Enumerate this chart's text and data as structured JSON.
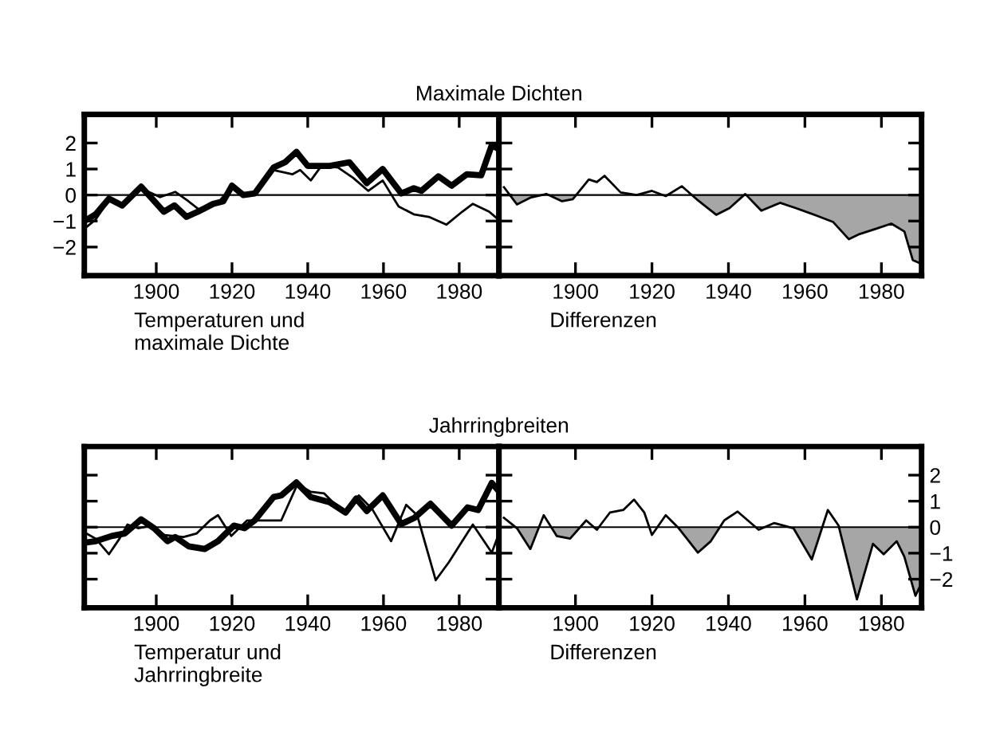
{
  "chart_data": [
    {
      "type": "line",
      "title": "Maximale Dichten",
      "xlabel": "Temperaturen und\nmaximale Dichte",
      "xlim": [
        1881,
        1990.5
      ],
      "xticks": [
        1900,
        1920,
        1940,
        1960,
        1980
      ],
      "ylim": [
        -3.1,
        3.1
      ],
      "yticks": [
        {
          "value": -2,
          "label": "−2"
        },
        {
          "value": -1,
          "label": "−1"
        },
        0,
        1,
        2
      ],
      "grid": false,
      "marker": "none",
      "line_style": "solid",
      "ref_lines": [
        {
          "axis": "y",
          "value": 0,
          "color": "#000000"
        }
      ],
      "series": [
        {
          "color": "#000000",
          "x": [
            1881,
            1884,
            1887.5,
            1891,
            1896,
            1902,
            1904.8,
            1908,
            1911,
            1915,
            1917.7,
            1920,
            1923,
            1926,
            1931,
            1934,
            1937,
            1940,
            1945.8,
            1951,
            1955.6,
            1959.8,
            1964.7,
            1968,
            1970,
            1974.5,
            1978,
            1982,
            1985.8,
            1988.6,
            1990
          ],
          "values": [
            -1.0,
            -0.74,
            -0.14,
            -0.4,
            0.32,
            -0.64,
            -0.4,
            -0.84,
            -0.64,
            -0.34,
            -0.24,
            0.36,
            0,
            0.06,
            1.06,
            1.26,
            1.66,
            1.12,
            1.12,
            1.26,
            0.46,
            1.0,
            0.06,
            0.26,
            0.16,
            0.72,
            0.36,
            0.8,
            0.76,
            1.92,
            1.8
          ]
        },
        {
          "color": "#000000",
          "x": [
            1881,
            1884,
            1887.5,
            1891,
            1896,
            1901,
            1905,
            1908.5,
            1912,
            1916,
            1920,
            1923,
            1926,
            1931,
            1936,
            1938,
            1940.8,
            1943.6,
            1948,
            1952,
            1956,
            1959.8,
            1964,
            1968,
            1972,
            1976.6,
            1980.8,
            1983.6,
            1987.9,
            1990
          ],
          "values": [
            -1.3,
            -0.94,
            -0.2,
            -0.34,
            0.26,
            -0.08,
            0.12,
            -0.24,
            -0.64,
            -0.34,
            0.32,
            0,
            0.06,
            0.96,
            0.8,
            0.96,
            0.56,
            1.12,
            1.06,
            0.66,
            0.16,
            0.56,
            -0.44,
            -0.74,
            -0.84,
            -1.14,
            -0.64,
            -0.34,
            -0.64,
            -0.9
          ]
        }
      ]
    },
    {
      "type": "line",
      "xlabel": "Differenzen",
      "xlim": [
        1880,
        1990.5
      ],
      "xticks": [
        1900,
        1920,
        1940,
        1960,
        1980
      ],
      "ylim": [
        -3.1,
        3.1
      ],
      "yticks": [
        -2,
        -1,
        0,
        1,
        2
      ],
      "tick_labels": "x",
      "grid": false,
      "ref_lines": [
        {
          "axis": "y",
          "value": 0,
          "color": "#000000"
        }
      ],
      "series": [
        {
          "type": "area",
          "color": "#000000",
          "x": [
            1882.8,
            1884.7,
            1888.2,
            1891.2
          ],
          "values": [
            0,
            -0.36,
            -0.1,
            0
          ]
        },
        {
          "type": "area",
          "color": "#000000",
          "x": [
            1893.0,
            1896.5,
            1899.3,
            1900.2
          ],
          "values": [
            0,
            -0.24,
            -0.16,
            0
          ]
        },
        {
          "type": "area",
          "color": "#000000",
          "x": [
            1930.4,
            1932,
            1936.8,
            1940.3,
            1944.1
          ],
          "values": [
            0,
            -0.2,
            -0.76,
            -0.5,
            0
          ]
        },
        {
          "type": "area",
          "color": "#000000",
          "x": [
            1944.7,
            1948.6,
            1953.5,
            1957.6,
            1963.2,
            1967.4,
            1971.5,
            1974.3,
            1978.5,
            1982.6,
            1986,
            1988.2,
            1990.3
          ],
          "values": [
            0,
            -0.6,
            -0.3,
            -0.5,
            -0.8,
            -1.04,
            -1.7,
            -1.5,
            -1.3,
            -1.1,
            -1.4,
            -2.5,
            -2.64
          ]
        },
        {
          "type": "line",
          "color": "#000000",
          "x": [
            1881.3,
            1884.7,
            1888.2,
            1892.4,
            1896.5,
            1899.3,
            1903.5,
            1905.6,
            1907.6,
            1911.8,
            1916,
            1920,
            1923.6,
            1927.8,
            1932,
            1936.8,
            1940.3,
            1944.4,
            1948.6,
            1953.5,
            1957.6,
            1963.2,
            1967.4,
            1971.5,
            1974.3,
            1978.5,
            1982.6,
            1986,
            1988.2,
            1990.3
          ],
          "values": [
            0.3,
            -0.36,
            -0.1,
            0.04,
            -0.24,
            -0.16,
            0.6,
            0.5,
            0.74,
            0.1,
            0,
            0.16,
            -0.04,
            0.34,
            -0.2,
            -0.76,
            -0.5,
            0.04,
            -0.6,
            -0.3,
            -0.5,
            -0.8,
            -1.04,
            -1.7,
            -1.5,
            -1.3,
            -1.1,
            -1.4,
            -2.5,
            -2.64
          ]
        }
      ]
    },
    {
      "type": "line",
      "title": "Jahrringbreiten",
      "xlabel": "Temperatur und\nJahrringbreite",
      "xlim": [
        1881,
        1990.5
      ],
      "xticks": [
        1900,
        1920,
        1940,
        1960,
        1980
      ],
      "ylim": [
        -3.1,
        3.1
      ],
      "yticks": [
        -2,
        -1,
        0,
        1,
        2
      ],
      "tick_labels": "x",
      "grid": false,
      "marker": "none",
      "line_style": "solid",
      "ref_lines": [
        {
          "axis": "y",
          "value": 0,
          "color": "#000000"
        }
      ],
      "series": [
        {
          "color": "#000000",
          "x": [
            1881,
            1884,
            1888.2,
            1891.7,
            1896,
            1899.4,
            1903,
            1905,
            1908.6,
            1912.8,
            1916.3,
            1920.5,
            1923.3,
            1926,
            1931,
            1933,
            1937,
            1940.8,
            1945.8,
            1950,
            1952.8,
            1955.6,
            1959.8,
            1964.7,
            1968.2,
            1972.4,
            1978,
            1982.2,
            1985,
            1988.6,
            1990
          ],
          "values": [
            -0.6,
            -0.54,
            -0.34,
            -0.24,
            0.3,
            -0.04,
            -0.54,
            -0.38,
            -0.74,
            -0.84,
            -0.54,
            0.06,
            -0.04,
            0.26,
            1.16,
            1.22,
            1.72,
            1.16,
            0.96,
            0.56,
            1.1,
            0.62,
            1.22,
            0.12,
            0.36,
            0.9,
            0.06,
            0.76,
            0.66,
            1.7,
            1.46
          ]
        },
        {
          "color": "#000000",
          "x": [
            1881,
            1884,
            1887.5,
            1890.3,
            1892.4,
            1895.2,
            1898.7,
            1902.2,
            1907.2,
            1910.7,
            1914.2,
            1916.3,
            1919.8,
            1924,
            1927.5,
            1933,
            1937.3,
            1940.8,
            1944.3,
            1949.3,
            1953.5,
            1957,
            1962,
            1966,
            1968.9,
            1973.8,
            1977.3,
            1980.8,
            1983.6,
            1988.6,
            1990
          ],
          "values": [
            -0.2,
            -0.44,
            -1.04,
            -0.44,
            0.1,
            -0.04,
            0.06,
            -0.3,
            -0.38,
            -0.24,
            0.26,
            0.46,
            -0.34,
            0.26,
            0.26,
            0.26,
            1.66,
            1.36,
            1.3,
            0.56,
            1.22,
            0.7,
            -0.54,
            0.86,
            0.46,
            -2.04,
            -1.34,
            -0.54,
            0.1,
            -0.98,
            -0.44
          ]
        }
      ]
    },
    {
      "type": "line",
      "xlabel": "Differenzen",
      "xlim": [
        1880,
        1990.5
      ],
      "xticks": [
        1900,
        1920,
        1940,
        1960,
        1980
      ],
      "y2lim": [
        -3.1,
        3.1
      ],
      "y2ticks": [
        {
          "value": -2,
          "label": "−2"
        },
        {
          "value": -1,
          "label": "−1"
        },
        0,
        1,
        2
      ],
      "grid": false,
      "ref_lines": [
        {
          "axis": "y2",
          "value": 0,
          "color": "#000000"
        }
      ],
      "series": [
        {
          "type": "area",
          "color": "#000000",
          "axis": "y2",
          "x": [
            1884.4,
            1884.7,
            1888.2,
            1890.5
          ],
          "values": [
            0,
            -0.04,
            -0.84,
            0
          ]
        },
        {
          "type": "area",
          "color": "#000000",
          "axis": "y2",
          "x": [
            1893.7,
            1895.1,
            1898.6,
            1901.2
          ],
          "values": [
            0,
            -0.34,
            -0.44,
            0
          ]
        },
        {
          "type": "area",
          "color": "#000000",
          "axis": "y2",
          "x": [
            1926.7,
            1927,
            1932,
            1935.4,
            1937.8
          ],
          "values": [
            0,
            -0.04,
            -0.98,
            -0.54,
            0
          ]
        },
        {
          "type": "area",
          "color": "#000000",
          "axis": "y2",
          "x": [
            1956,
            1957,
            1961.8,
            1964.5
          ],
          "values": [
            0,
            -0.04,
            -1.24,
            0
          ]
        },
        {
          "type": "area",
          "color": "#000000",
          "axis": "y2",
          "x": [
            1968.9,
            1973.6,
            1977.8,
            1980.6,
            1984,
            1986,
            1988.9,
            1990
          ],
          "values": [
            0,
            -2.78,
            -0.64,
            -1.04,
            -0.54,
            -1.14,
            -2.64,
            -2.3
          ]
        },
        {
          "type": "line",
          "color": "#000000",
          "axis": "y2",
          "x": [
            1881.3,
            1884.7,
            1888.2,
            1891.7,
            1895.1,
            1898.6,
            1902.8,
            1905.6,
            1909,
            1912.5,
            1915.3,
            1918,
            1920,
            1923.6,
            1927,
            1932,
            1935.4,
            1938.9,
            1942.4,
            1947.9,
            1952,
            1957,
            1961.8,
            1966,
            1968.8,
            1973.6,
            1977.8,
            1980.6,
            1984,
            1986,
            1988.9,
            1990
          ],
          "values": [
            0.36,
            -0.04,
            -0.84,
            0.46,
            -0.34,
            -0.44,
            0.26,
            -0.1,
            0.56,
            0.66,
            1.06,
            0.56,
            -0.3,
            0.46,
            -0.04,
            -0.98,
            -0.54,
            0.26,
            0.6,
            -0.1,
            0.16,
            -0.04,
            -1.24,
            0.66,
            0.06,
            -2.78,
            -0.64,
            -1.04,
            -0.54,
            -1.14,
            -2.64,
            -2.3
          ]
        }
      ]
    }
  ]
}
